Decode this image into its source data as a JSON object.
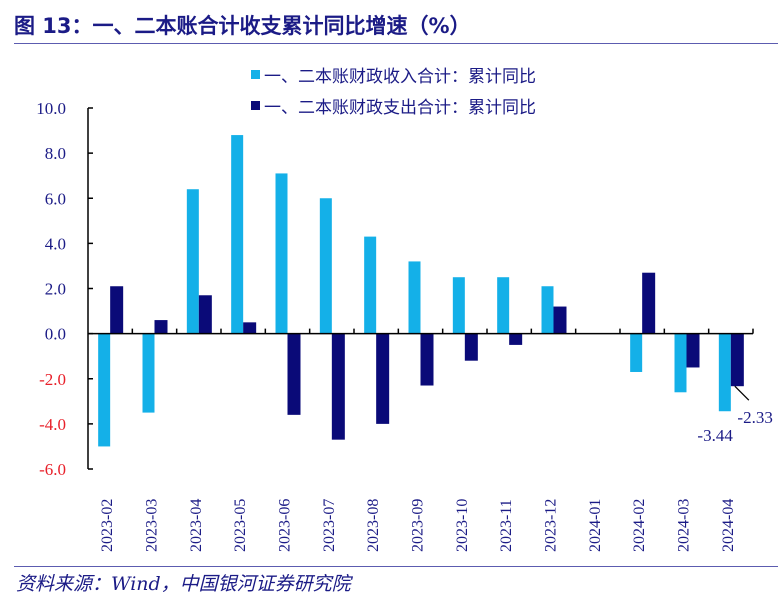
{
  "title": "图 13：一、二本账合计收支累计同比增速（%）",
  "source": "资料来源：Wind，中国银河证券研究院",
  "chart_data": {
    "type": "bar",
    "title": "",
    "xlabel": "",
    "ylabel": "",
    "ylim": [
      -6,
      10
    ],
    "yticks": [
      "10.0",
      "8.0",
      "6.0",
      "4.0",
      "2.0",
      "0.0",
      "-2.0",
      "-4.0",
      "-6.0"
    ],
    "ytick_values": [
      10,
      8,
      6,
      4,
      2,
      0,
      -2,
      -4,
      -6
    ],
    "negative_tick_color": "#e8202a",
    "positive_tick_color": "#1b1b86",
    "legend_placement": "top",
    "grid": false,
    "categories": [
      "2023-02",
      "2023-03",
      "2023-04",
      "2023-05",
      "2023-06",
      "2023-07",
      "2023-08",
      "2023-09",
      "2023-10",
      "2023-11",
      "2023-12",
      "2024-01",
      "2024-02",
      "2024-03",
      "2024-04"
    ],
    "series": [
      {
        "name": "一、二本账财政收入合计：累计同比",
        "color": "#14b0e8",
        "values": [
          -5.0,
          -3.5,
          6.4,
          8.8,
          7.1,
          6.0,
          4.3,
          3.2,
          2.5,
          2.5,
          2.1,
          null,
          -1.7,
          -2.6,
          -3.44
        ]
      },
      {
        "name": "一、二本账财政支出合计：累计同比",
        "color": "#0a0a78",
        "values": [
          2.1,
          0.6,
          1.7,
          0.5,
          -3.6,
          -4.7,
          -4.0,
          -2.3,
          -1.2,
          -0.5,
          1.2,
          null,
          2.7,
          -1.5,
          -2.33
        ]
      }
    ],
    "annotations": [
      "-2.33",
      "-3.44"
    ]
  }
}
